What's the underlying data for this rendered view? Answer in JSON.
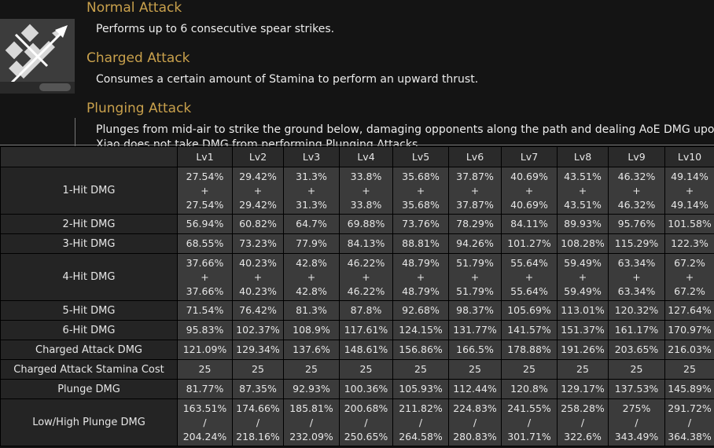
{
  "skill": {
    "icon": "spear-crossed-icon",
    "sections": [
      {
        "title": "Normal Attack",
        "lines": [
          "Performs up to 6 consecutive spear strikes."
        ]
      },
      {
        "title": "Charged Attack",
        "lines": [
          "Consumes a certain amount of Stamina to perform an upward thrust."
        ]
      },
      {
        "title": "Plunging Attack",
        "lines": [
          "Plunges from mid-air to strike the ground below, damaging opponents along the path and dealing AoE DMG upon impact.",
          "Xiao does not take DMG from performing Plunging Attacks."
        ]
      }
    ]
  },
  "table": {
    "levels": [
      "Lv1",
      "Lv2",
      "Lv3",
      "Lv4",
      "Lv5",
      "Lv6",
      "Lv7",
      "Lv8",
      "Lv9",
      "Lv10"
    ],
    "rows": [
      {
        "label": "1-Hit DMG",
        "cells": [
          [
            "27.54%",
            "+",
            "27.54%"
          ],
          [
            "29.42%",
            "+",
            "29.42%"
          ],
          [
            "31.3%",
            "+",
            "31.3%"
          ],
          [
            "33.8%",
            "+",
            "33.8%"
          ],
          [
            "35.68%",
            "+",
            "35.68%"
          ],
          [
            "37.87%",
            "+",
            "37.87%"
          ],
          [
            "40.69%",
            "+",
            "40.69%"
          ],
          [
            "43.51%",
            "+",
            "43.51%"
          ],
          [
            "46.32%",
            "+",
            "46.32%"
          ],
          [
            "49.14%",
            "+",
            "49.14%"
          ]
        ]
      },
      {
        "label": "2-Hit DMG",
        "cells": [
          [
            "56.94%"
          ],
          [
            "60.82%"
          ],
          [
            "64.7%"
          ],
          [
            "69.88%"
          ],
          [
            "73.76%"
          ],
          [
            "78.29%"
          ],
          [
            "84.11%"
          ],
          [
            "89.93%"
          ],
          [
            "95.76%"
          ],
          [
            "101.58%"
          ]
        ]
      },
      {
        "label": "3-Hit DMG",
        "cells": [
          [
            "68.55%"
          ],
          [
            "73.23%"
          ],
          [
            "77.9%"
          ],
          [
            "84.13%"
          ],
          [
            "88.81%"
          ],
          [
            "94.26%"
          ],
          [
            "101.27%"
          ],
          [
            "108.28%"
          ],
          [
            "115.29%"
          ],
          [
            "122.3%"
          ]
        ]
      },
      {
        "label": "4-Hit DMG",
        "cells": [
          [
            "37.66%",
            "+",
            "37.66%"
          ],
          [
            "40.23%",
            "+",
            "40.23%"
          ],
          [
            "42.8%",
            "+",
            "42.8%"
          ],
          [
            "46.22%",
            "+",
            "46.22%"
          ],
          [
            "48.79%",
            "+",
            "48.79%"
          ],
          [
            "51.79%",
            "+",
            "51.79%"
          ],
          [
            "55.64%",
            "+",
            "55.64%"
          ],
          [
            "59.49%",
            "+",
            "59.49%"
          ],
          [
            "63.34%",
            "+",
            "63.34%"
          ],
          [
            "67.2%",
            "+",
            "67.2%"
          ]
        ]
      },
      {
        "label": "5-Hit DMG",
        "cells": [
          [
            "71.54%"
          ],
          [
            "76.42%"
          ],
          [
            "81.3%"
          ],
          [
            "87.8%"
          ],
          [
            "92.68%"
          ],
          [
            "98.37%"
          ],
          [
            "105.69%"
          ],
          [
            "113.01%"
          ],
          [
            "120.32%"
          ],
          [
            "127.64%"
          ]
        ]
      },
      {
        "label": "6-Hit DMG",
        "cells": [
          [
            "95.83%"
          ],
          [
            "102.37%"
          ],
          [
            "108.9%"
          ],
          [
            "117.61%"
          ],
          [
            "124.15%"
          ],
          [
            "131.77%"
          ],
          [
            "141.57%"
          ],
          [
            "151.37%"
          ],
          [
            "161.17%"
          ],
          [
            "170.97%"
          ]
        ]
      },
      {
        "label": "Charged Attack DMG",
        "cells": [
          [
            "121.09%"
          ],
          [
            "129.34%"
          ],
          [
            "137.6%"
          ],
          [
            "148.61%"
          ],
          [
            "156.86%"
          ],
          [
            "166.5%"
          ],
          [
            "178.88%"
          ],
          [
            "191.26%"
          ],
          [
            "203.65%"
          ],
          [
            "216.03%"
          ]
        ]
      },
      {
        "label": "Charged Attack Stamina Cost",
        "cells": [
          [
            "25"
          ],
          [
            "25"
          ],
          [
            "25"
          ],
          [
            "25"
          ],
          [
            "25"
          ],
          [
            "25"
          ],
          [
            "25"
          ],
          [
            "25"
          ],
          [
            "25"
          ],
          [
            "25"
          ]
        ]
      },
      {
        "label": "Plunge DMG",
        "cells": [
          [
            "81.77%"
          ],
          [
            "87.35%"
          ],
          [
            "92.93%"
          ],
          [
            "100.36%"
          ],
          [
            "105.93%"
          ],
          [
            "112.44%"
          ],
          [
            "120.8%"
          ],
          [
            "129.17%"
          ],
          [
            "137.53%"
          ],
          [
            "145.89%"
          ]
        ]
      },
      {
        "label": "Low/High Plunge DMG",
        "cells": [
          [
            "163.51%",
            "/",
            "204.24%"
          ],
          [
            "174.66%",
            "/",
            "218.16%"
          ],
          [
            "185.81%",
            "/",
            "232.09%"
          ],
          [
            "200.68%",
            "/",
            "250.65%"
          ],
          [
            "211.82%",
            "/",
            "264.58%"
          ],
          [
            "224.83%",
            "/",
            "280.83%"
          ],
          [
            "241.55%",
            "/",
            "301.71%"
          ],
          [
            "258.28%",
            "/",
            "322.6%"
          ],
          [
            "275%",
            "/",
            "343.49%"
          ],
          [
            "291.72%",
            "/",
            "364.38%"
          ]
        ]
      }
    ]
  }
}
